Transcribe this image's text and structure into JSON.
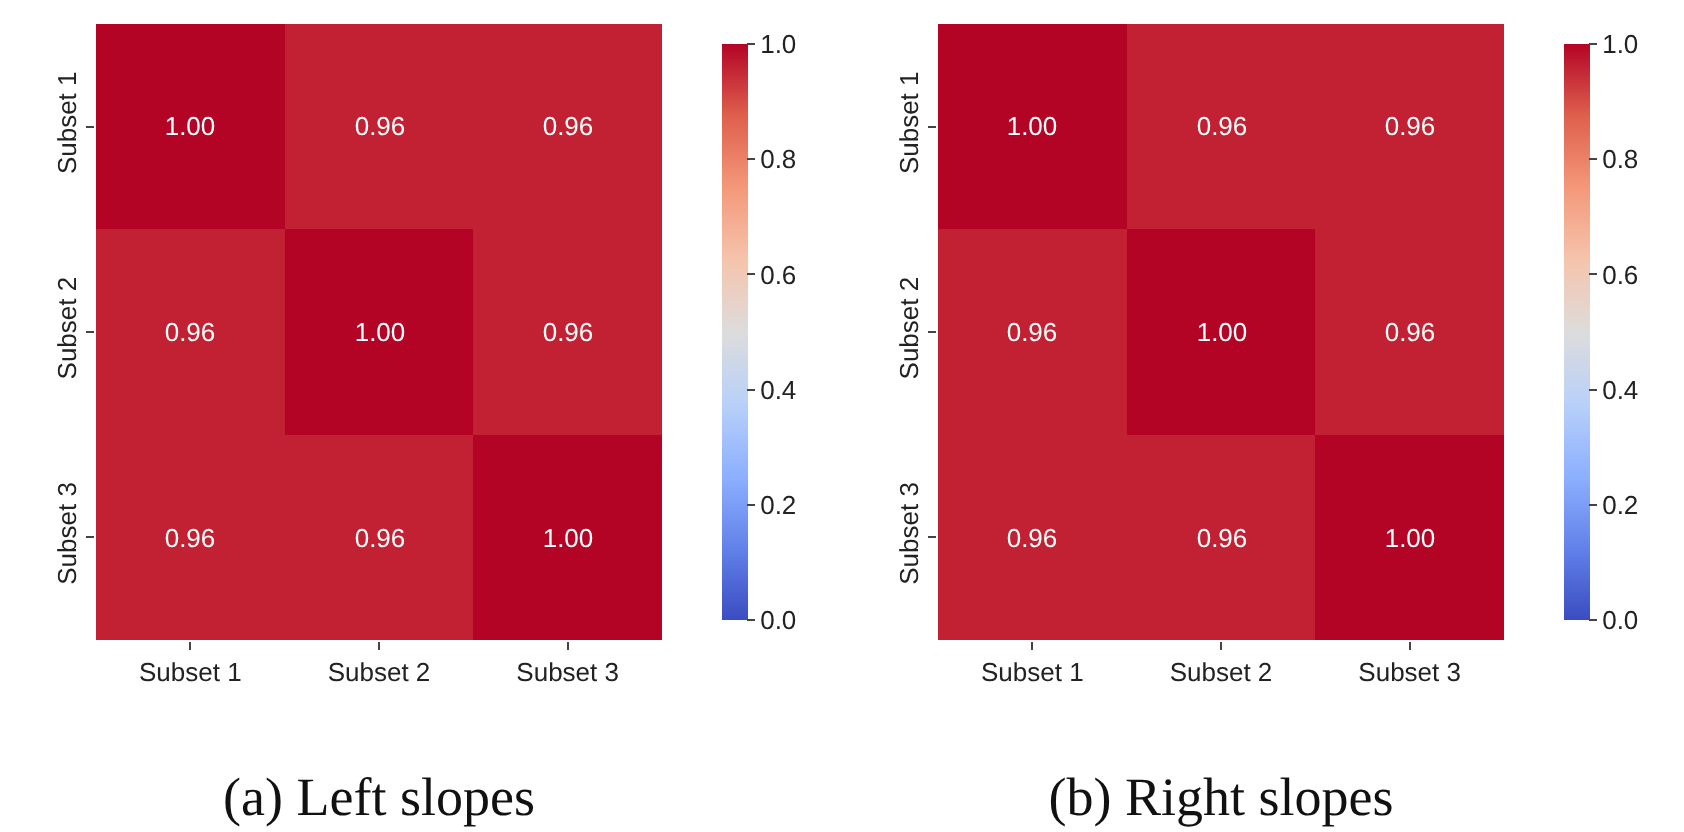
{
  "chart_data": [
    {
      "type": "heatmap",
      "title": "(a) Left slopes",
      "categories": [
        "Subset 1",
        "Subset 2",
        "Subset 3"
      ],
      "y_categories": [
        "Subset 1",
        "Subset 2",
        "Subset 3"
      ],
      "cells": [
        [
          1.0,
          0.96,
          0.96
        ],
        [
          0.96,
          1.0,
          0.96
        ],
        [
          0.96,
          0.96,
          1.0
        ]
      ],
      "cell_labels": [
        [
          "1.00",
          "0.96",
          "0.96"
        ],
        [
          "0.96",
          "1.00",
          "0.96"
        ],
        [
          "0.96",
          "0.96",
          "1.00"
        ]
      ],
      "clim": [
        0,
        1
      ],
      "cticks": [
        {
          "value": 0,
          "label": "0.0"
        },
        {
          "value": 0.2,
          "label": "0.2"
        },
        {
          "value": 0.4,
          "label": "0.4"
        },
        {
          "value": 0.6,
          "label": "0.6"
        },
        {
          "value": 0.8,
          "label": "0.8"
        },
        {
          "value": 1,
          "label": "1.0"
        }
      ]
    },
    {
      "type": "heatmap",
      "title": "(b) Right slopes",
      "categories": [
        "Subset 1",
        "Subset 2",
        "Subset 3"
      ],
      "y_categories": [
        "Subset 1",
        "Subset 2",
        "Subset 3"
      ],
      "cells": [
        [
          1.0,
          0.96,
          0.96
        ],
        [
          0.96,
          1.0,
          0.96
        ],
        [
          0.96,
          0.96,
          1.0
        ]
      ],
      "cell_labels": [
        [
          "1.00",
          "0.96",
          "0.96"
        ],
        [
          "0.96",
          "1.00",
          "0.96"
        ],
        [
          "0.96",
          "0.96",
          "1.00"
        ]
      ],
      "clim": [
        0,
        1
      ],
      "cticks": [
        {
          "value": 0,
          "label": "0.0"
        },
        {
          "value": 0.2,
          "label": "0.2"
        },
        {
          "value": 0.4,
          "label": "0.4"
        },
        {
          "value": 0.6,
          "label": "0.6"
        },
        {
          "value": 0.8,
          "label": "0.8"
        },
        {
          "value": 1,
          "label": "1.0"
        }
      ]
    }
  ]
}
